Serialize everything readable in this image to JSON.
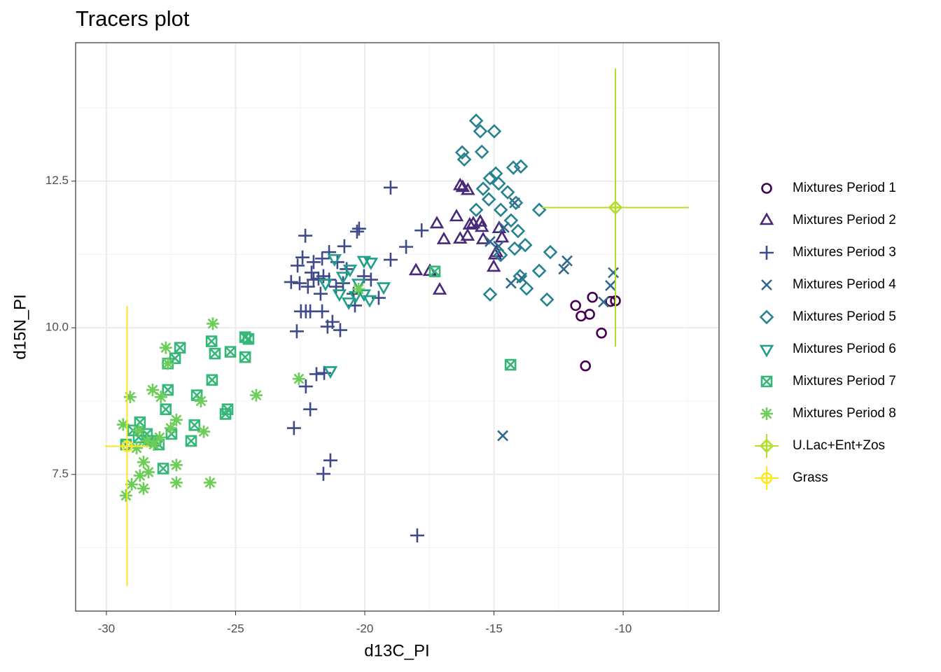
{
  "chart_data": {
    "type": "scatter",
    "title": "Tracers plot",
    "xlabel": "d13C_PI",
    "ylabel": "d15N_PI",
    "xlim": [
      -31.19,
      -6.29
    ],
    "ylim": [
      5.17,
      14.86
    ],
    "xticks": [
      -30,
      -25,
      -20,
      -15,
      -10
    ],
    "yticks": [
      7.5,
      {
        "value": 10,
        "label": "10.0"
      },
      12.5
    ],
    "x_minor_ticks": [
      -27.5,
      -22.5,
      -17.5,
      -12.5,
      -7.5
    ],
    "y_minor_ticks": [
      6.25,
      8.75,
      11.25,
      13.75
    ],
    "grid": true,
    "legend": "right",
    "series": [
      {
        "name": "Mixtures Period 1",
        "color": "#440154",
        "shape": "circle",
        "x": [
          -11.84,
          -11.63,
          -11.3,
          -11.19,
          -11.46,
          -10.84,
          -10.49,
          -10.3
        ],
        "y": [
          10.38,
          10.2,
          10.23,
          10.52,
          9.35,
          9.91,
          10.45,
          10.46
        ]
      },
      {
        "name": "Mixtures Period 2",
        "color": "#482878",
        "shape": "triangle",
        "x": [
          -16.31,
          -16.21,
          -16.45,
          -17.21,
          -16.94,
          -16.31,
          -16.02,
          -15.47,
          -15.42,
          -15.94,
          -15.8,
          -17.48,
          -18.02,
          -17.1,
          -15.01,
          -14.91,
          -14.96,
          -14.69,
          -14.8,
          -15.53,
          -16.01
        ],
        "y": [
          12.42,
          12.39,
          11.89,
          11.77,
          11.5,
          11.51,
          11.56,
          11.71,
          11.5,
          11.75,
          11.77,
          10.96,
          10.97,
          10.64,
          11.03,
          11.28,
          11.24,
          11.53,
          11.69,
          11.8,
          12.34
        ]
      },
      {
        "name": "Mixtures Period 3",
        "color": "#3E4A89",
        "shape": "plus",
        "x": [
          -19.0,
          -22.3,
          -22.41,
          -20.22,
          -20.3,
          -20.79,
          -18.4,
          -17.8,
          -19.0,
          -19.46,
          -20.38,
          -22.63,
          -22.74,
          -22.11,
          -22.28,
          -21.87,
          -21.57,
          -21.33,
          -21.6,
          -17.97,
          -22.85,
          -22.52,
          -22.2,
          -21.98,
          -21.79,
          -21.6,
          -21.38,
          -21.11,
          -20.84,
          -21.71,
          -22.06,
          -22.6,
          -21.98,
          -21.65,
          -22.28,
          -21.65,
          -21.25,
          -20.95,
          -21.44,
          -20.43,
          -20.03,
          -19.76,
          -20.7,
          -21.06,
          -21.38,
          -22.11,
          -22.47
        ],
        "y": [
          12.39,
          11.57,
          11.2,
          11.69,
          11.64,
          11.39,
          11.38,
          11.66,
          11.16,
          10.51,
          10.38,
          9.94,
          8.29,
          8.61,
          9.0,
          9.21,
          9.23,
          7.74,
          7.51,
          6.46,
          10.78,
          10.76,
          10.7,
          10.82,
          10.84,
          10.88,
          10.82,
          10.7,
          10.76,
          10.58,
          10.94,
          11.06,
          11.12,
          11.18,
          10.28,
          10.28,
          10.1,
          9.96,
          10.02,
          10.58,
          10.88,
          10.82,
          11.0,
          11.12,
          11.29,
          10.28,
          10.28
        ]
      },
      {
        "name": "Mixtures Period 4",
        "color": "#31688E",
        "shape": "cross",
        "x": [
          -10.49,
          -10.38,
          -10.76,
          -12.17,
          -12.3,
          -13.93,
          -14.34,
          -14.66,
          -14.82,
          -15.15,
          -14.61,
          -14.2
        ],
        "y": [
          10.72,
          10.94,
          10.44,
          11.14,
          11.0,
          10.85,
          10.76,
          8.16,
          11.39,
          11.47,
          11.71,
          12.13
        ]
      },
      {
        "name": "Mixtures Period 5",
        "color": "#26828E",
        "shape": "diamond",
        "x": [
          -15.69,
          -15.53,
          -14.99,
          -16.23,
          -15.47,
          -16.15,
          -14.25,
          -13.96,
          -14.93,
          -15.15,
          -14.82,
          -15.42,
          -14.47,
          -14.15,
          -15.69,
          -13.25,
          -15.2,
          -14.74,
          -14.34,
          -14.07,
          -13.79,
          -14.2,
          -14.74,
          -12.82,
          -13.25,
          -13.74,
          -15.15,
          -12.95,
          -13.99
        ],
        "y": [
          13.53,
          13.35,
          13.35,
          12.99,
          13.0,
          12.87,
          12.73,
          12.75,
          12.63,
          12.55,
          12.46,
          12.37,
          12.31,
          12.13,
          12.01,
          12.01,
          12.19,
          12.01,
          11.83,
          11.65,
          11.41,
          11.35,
          11.24,
          11.29,
          10.97,
          10.67,
          10.57,
          10.48,
          10.88
        ]
      },
      {
        "name": "Mixtures Period 6",
        "color": "#1F9E89",
        "shape": "triangle-down",
        "x": [
          -21.33,
          -19.76,
          -19.27,
          -20.03,
          -20.84,
          -20.62,
          -20.35,
          -20.03,
          -21.17,
          -21.52,
          -20.57,
          -20.24,
          -20.98,
          -19.81
        ],
        "y": [
          9.27,
          11.12,
          10.7,
          11.15,
          10.88,
          10.44,
          10.55,
          10.58,
          11.18,
          10.76,
          11.0,
          10.76,
          10.58,
          10.48
        ]
      },
      {
        "name": "Mixtures Period 7",
        "color": "#35B779",
        "shape": "square-cross",
        "x": [
          -17.29,
          -14.36,
          -27.15,
          -27.34,
          -27.62,
          -25.93,
          -25.8,
          -25.2,
          -24.63,
          -24.5,
          -24.63,
          -25.91,
          -26.5,
          -27.62,
          -25.31,
          -25.39,
          -26.59,
          -26.72,
          -27.7,
          -27.48,
          -27.8,
          -28.7,
          -28.43,
          -28.1,
          -29.24,
          -28.97,
          -27.97,
          -28.29,
          -28.75
        ],
        "y": [
          10.96,
          9.37,
          9.66,
          9.48,
          9.39,
          9.77,
          9.56,
          9.59,
          9.84,
          9.81,
          9.5,
          9.11,
          8.85,
          8.94,
          8.61,
          8.53,
          8.34,
          8.07,
          8.61,
          8.19,
          7.6,
          8.39,
          8.19,
          8.07,
          8.01,
          8.25,
          8.01,
          8.07,
          8.13
        ]
      },
      {
        "name": "Mixtures Period 8",
        "color": "#6DCD59",
        "shape": "asterisk",
        "x": [
          -20.24,
          -22.55,
          -25.88,
          -24.2,
          -27.7,
          -27.62,
          -28.21,
          -27.89,
          -29.08,
          -26.34,
          -26.23,
          -27.29,
          -27.51,
          -29.35,
          -28.75,
          -28.43,
          -28.16,
          -28.56,
          -28.37,
          -27.29,
          -27.29,
          -25.99,
          -29.02,
          -28.56,
          -29.24,
          -28.7,
          -27.94,
          -28.83
        ],
        "y": [
          10.66,
          9.13,
          10.07,
          8.85,
          9.66,
          9.39,
          8.94,
          8.82,
          8.82,
          8.75,
          8.23,
          8.43,
          8.29,
          8.35,
          8.25,
          8.07,
          8.01,
          7.71,
          7.54,
          7.66,
          7.36,
          7.36,
          7.33,
          7.26,
          7.14,
          7.48,
          8.13,
          7.95
        ]
      },
      {
        "name": "U.Lac+Ent+Zos",
        "color": "#B4DE2C",
        "shape": "diamond-plus",
        "x": [
          -10.3
        ],
        "y": [
          12.05
        ],
        "x_error": [
          2.85
        ],
        "y_error": [
          2.37
        ]
      },
      {
        "name": "Grass",
        "color": "#FDE725",
        "shape": "circle-plus",
        "x": [
          -29.2
        ],
        "y": [
          7.98
        ],
        "x_error": [
          0.85
        ],
        "y_error": [
          2.39
        ]
      }
    ]
  }
}
